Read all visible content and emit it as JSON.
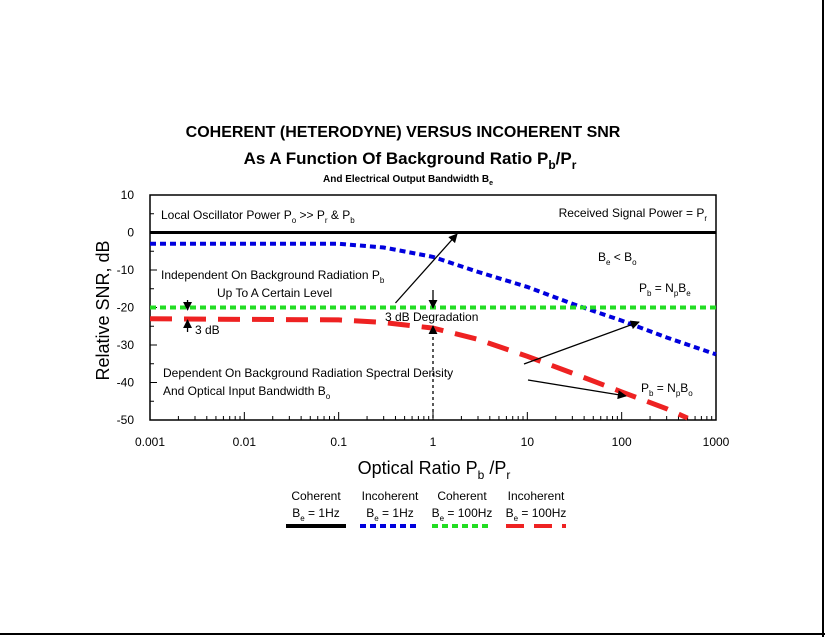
{
  "chart_data": {
    "type": "line",
    "title": "COHERENT (HETERODYNE) VERSUS INCOHERENT SNR",
    "subtitle": {
      "text": "As A Function Of Background Ratio P",
      "sub1": "b",
      "mid": "/P",
      "sub2": "r"
    },
    "subtitle2": {
      "text": "And Electrical Output Bandwidth B",
      "sub": "e"
    },
    "xlabel": {
      "text": "Optical Ratio P",
      "sub1": "b",
      "mid": " /P",
      "sub2": "r"
    },
    "ylabel": "Relative SNR, dB",
    "x_scale": "log",
    "xlim": [
      0.001,
      1000
    ],
    "ylim": [
      -50,
      10
    ],
    "x_ticks": [
      "0.001",
      "0.01",
      "0.1",
      "1",
      "10",
      "100",
      "1000"
    ],
    "y_ticks": [
      "10",
      "0",
      "-10",
      "-20",
      "-30",
      "-40",
      "-50"
    ],
    "series": [
      {
        "color": "#000000",
        "dash": "solid",
        "width": 3,
        "x": [
          0.001,
          1000
        ],
        "y": [
          0,
          0
        ]
      },
      {
        "color": "#0000dd",
        "dash": "short",
        "width": 4,
        "x": [
          0.001,
          0.1,
          0.3,
          1,
          3,
          10,
          30,
          100,
          300,
          1000
        ],
        "y": [
          -3,
          -3,
          -4,
          -6.5,
          -10.5,
          -14.5,
          -19,
          -23.5,
          -28,
          -32.5
        ]
      },
      {
        "color": "#22dd22",
        "dash": "short",
        "width": 4,
        "x": [
          0.001,
          1000
        ],
        "y": [
          -20,
          -20
        ]
      },
      {
        "color": "#ee2222",
        "dash": "long",
        "width": 5,
        "x": [
          0.001,
          0.1,
          0.3,
          1,
          3,
          10,
          30,
          100,
          300,
          500
        ],
        "y": [
          -23,
          -23.3,
          -24,
          -25.5,
          -28.5,
          -33,
          -37.5,
          -42.5,
          -47,
          -49.5
        ]
      }
    ],
    "legend": {
      "placement": "bottom",
      "entries": [
        {
          "name": "Coherent",
          "sub_pre": "B",
          "sub": "e",
          "sub_post": " = 1Hz",
          "color": "#000000",
          "dash": "solid"
        },
        {
          "name": "Incoherent",
          "sub_pre": "B",
          "sub": "e",
          "sub_post": " = 1Hz",
          "color": "#0000dd",
          "dash": "short"
        },
        {
          "name": "Coherent",
          "sub_pre": "B",
          "sub": "e",
          "sub_post": " = 100Hz",
          "color": "#22dd22",
          "dash": "short"
        },
        {
          "name": "Incoherent",
          "sub_pre": "B",
          "sub": "e",
          "sub_post": " = 100Hz",
          "color": "#ee2222",
          "dash": "long"
        }
      ]
    },
    "annotations": {
      "lo_power": {
        "parts": [
          "Local Oscillator Power P",
          "o",
          " >> P",
          "r",
          " & P",
          "b"
        ]
      },
      "received": {
        "parts": [
          "Received Signal Power = P",
          "r"
        ]
      },
      "be_bo": {
        "parts": [
          "B",
          "e",
          " < B",
          "o"
        ]
      },
      "independent": {
        "parts": [
          "Independent On Background Radiation P",
          "b"
        ]
      },
      "up_to": "Up To A Certain Level",
      "pb_npbe": {
        "parts": [
          "P",
          "b",
          " = N",
          "p",
          "B",
          "e"
        ]
      },
      "three_db": "3 dB",
      "degradation": "3 dB Degradation",
      "dependent": "Dependent On Background Radiation Spectral Density",
      "optical_bw": {
        "parts": [
          "And Optical Input Bandwidth B",
          "o"
        ]
      },
      "pb_npbo": {
        "parts": [
          "P",
          "b",
          " = N",
          "p",
          "B",
          "o"
        ]
      }
    }
  }
}
